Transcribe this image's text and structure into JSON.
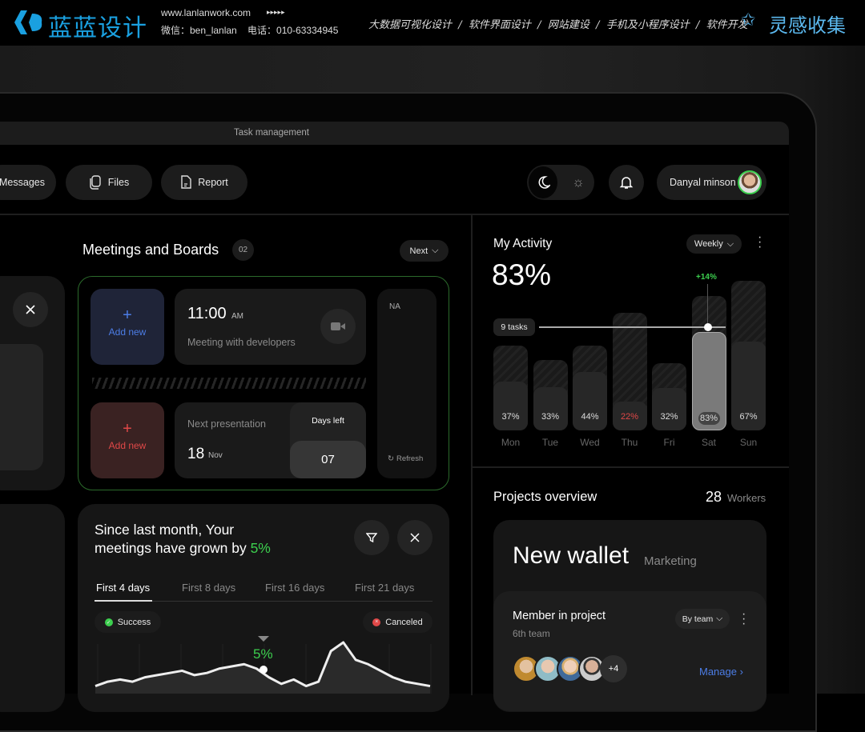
{
  "banner": {
    "logo_text": "蓝蓝设计",
    "url": "www.lanlanwork.com",
    "arrows": "▸▸▸▸▸",
    "contact": "微信：ben_lanlan    电话：010-63334945",
    "services": "大数据可视化设计  /  软件界面设计  /  网站建设  /  手机及小程序设计  /  软件开发",
    "right_logo": "灵感收集",
    "accent": "#1aa0e0"
  },
  "window": {
    "title": "Task management"
  },
  "toolbar": {
    "messages": "Messages",
    "files": "Files",
    "report": "Report",
    "user_name": "Danyal minson"
  },
  "meetings": {
    "title": "Meetings and Boards",
    "count": "02",
    "next": "Next",
    "add_new_1": "Add new",
    "add_new_2": "Add new",
    "time": "11:00",
    "ampm": "AM",
    "meeting_desc": "Meeting with developers",
    "next_pres": "Next presentation",
    "date_day": "18",
    "date_month": "Nov",
    "days_left_label": "Days left",
    "days_left": "07",
    "side_label": "NA",
    "refresh": "Refresh"
  },
  "growth": {
    "line1": "Since last month, Your",
    "line2": "meetings have grown by ",
    "pct": "5%",
    "tabs": [
      "First 4 days",
      "First 8 days",
      "First 16 days",
      "First 21 days"
    ],
    "active_tab": 0,
    "success": "Success",
    "canceled": "Canceled",
    "marker": "5%",
    "accent": "#3ccf4e"
  },
  "activity": {
    "title": "My Activity",
    "value": "83%",
    "period": "Weekly",
    "tasks_label": "9 tasks",
    "delta": "+14%"
  },
  "chart_data": {
    "type": "bar",
    "categories": [
      "Mon",
      "Tue",
      "Wed",
      "Thu",
      "Fri",
      "Sat",
      "Sun"
    ],
    "values": [
      37,
      33,
      44,
      22,
      32,
      83,
      67
    ],
    "value_labels": [
      "37%",
      "33%",
      "44%",
      "22%",
      "32%",
      "83%",
      "67%"
    ],
    "background_values": [
      71,
      59,
      71,
      98,
      56,
      112,
      125
    ],
    "highlight": "Sat",
    "low_color": "#e04848"
  },
  "growth_chart": {
    "type": "area",
    "values": [
      2,
      4,
      5,
      4,
      6,
      7,
      8,
      9,
      7,
      8,
      10,
      11,
      12,
      10,
      6,
      3,
      5,
      2,
      4,
      18,
      22,
      14,
      12,
      9,
      6,
      4,
      3,
      2
    ]
  },
  "projects": {
    "title": "Projects overview",
    "workers_count": "28",
    "workers_label": "Workers",
    "project_name": "New wallet",
    "project_tag": "Marketing",
    "member_title": "Member in project",
    "team": "6th team",
    "filter": "By team",
    "more_members": "+4",
    "manage": "Manage"
  }
}
